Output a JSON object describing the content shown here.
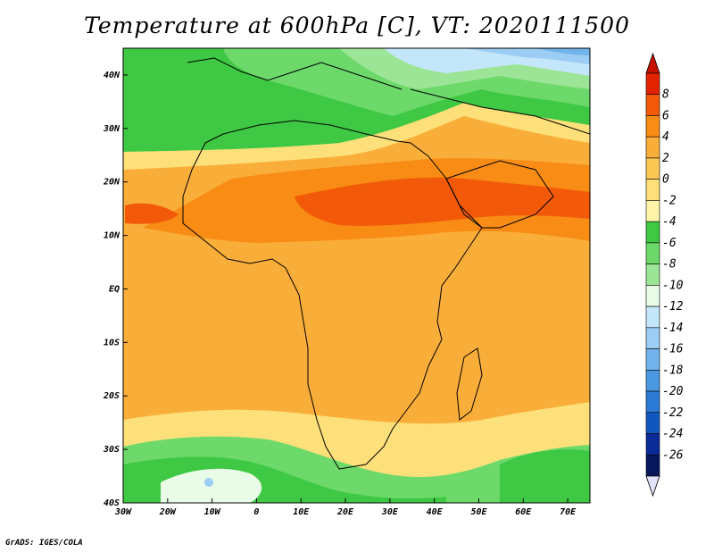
{
  "title": "Temperature at 600hPa [C], VT: 2020111500",
  "credit": "GrADS: IGES/COLA",
  "map": {
    "lon_range": [
      -30,
      75
    ],
    "lat_range": [
      -40,
      45
    ],
    "x_ticks": [
      {
        "lon": -30,
        "label": "30W"
      },
      {
        "lon": -20,
        "label": "20W"
      },
      {
        "lon": -10,
        "label": "10W"
      },
      {
        "lon": 0,
        "label": "0"
      },
      {
        "lon": 10,
        "label": "10E"
      },
      {
        "lon": 20,
        "label": "20E"
      },
      {
        "lon": 30,
        "label": "30E"
      },
      {
        "lon": 40,
        "label": "40E"
      },
      {
        "lon": 50,
        "label": "50E"
      },
      {
        "lon": 60,
        "label": "60E"
      },
      {
        "lon": 70,
        "label": "70E"
      }
    ],
    "y_ticks": [
      {
        "lat": 40,
        "label": "40N"
      },
      {
        "lat": 30,
        "label": "30N"
      },
      {
        "lat": 20,
        "label": "20N"
      },
      {
        "lat": 10,
        "label": "10N"
      },
      {
        "lat": 0,
        "label": "EQ"
      },
      {
        "lat": -10,
        "label": "10S"
      },
      {
        "lat": -20,
        "label": "20S"
      },
      {
        "lat": -30,
        "label": "30S"
      },
      {
        "lat": -40,
        "label": "40S"
      }
    ]
  },
  "colorbar": {
    "labels": [
      "8",
      "6",
      "4",
      "2",
      "0",
      "-2",
      "-4",
      "-6",
      "-8",
      "-10",
      "-12",
      "-14",
      "-16",
      "-18",
      "-20",
      "-22",
      "-24",
      "-26"
    ],
    "colors": [
      "#e32200",
      "#f25a0a",
      "#f88c14",
      "#faae3a",
      "#fcc854",
      "#fde07a",
      "#fef4a8",
      "#3ec843",
      "#6cd96a",
      "#9ce596",
      "#e8fce8",
      "#c4e6fa",
      "#9ccdf4",
      "#72b3ec",
      "#4a98e2",
      "#2a7ad6",
      "#1058c0",
      "#0a2a98",
      "#08175c"
    ],
    "top_color": "#c81200",
    "bottom_color": "#e2e2fc"
  }
}
